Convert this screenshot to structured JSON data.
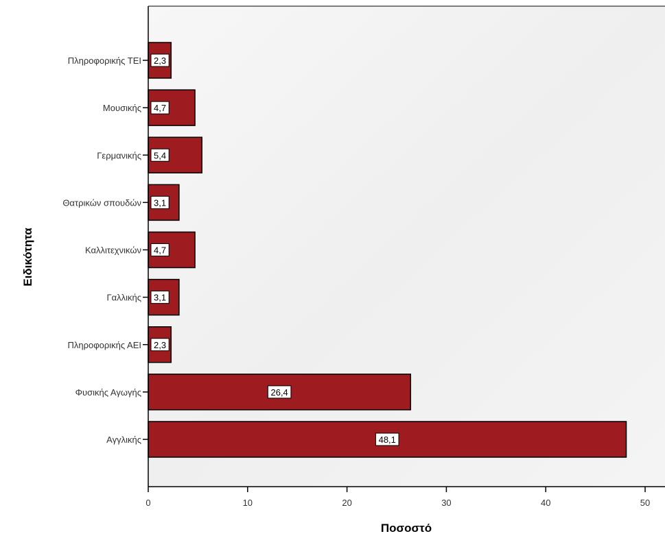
{
  "chart_data": {
    "type": "bar",
    "orientation": "horizontal",
    "xlabel": "Ποσοστό",
    "ylabel": "Ειδικότητα",
    "xlim": [
      0,
      52
    ],
    "xticks": [
      0,
      10,
      20,
      30,
      40,
      50
    ],
    "categories": [
      "Πληροφορικής ΤΕΙ",
      "Μουσικής",
      "Γερμανικής",
      "Θατρικών σπουδών",
      "Καλλιτεχνικών",
      "Γαλλικής",
      "Πληροφορικής ΑΕΙ",
      "Φυσικής Αγωγής",
      "Αγγλικής"
    ],
    "values": [
      2.3,
      4.7,
      5.4,
      3.1,
      4.7,
      3.1,
      2.3,
      26.4,
      48.1
    ],
    "data_labels": [
      "2,3",
      "4,7",
      "5,4",
      "3,1",
      "4,7",
      "3,1",
      "2,3",
      "26,4",
      "48,1"
    ],
    "tick_labels": [
      "0",
      "10",
      "20",
      "30",
      "40",
      "50"
    ],
    "bar_color": "#9e1b20",
    "plot_background": "#f2f2f2",
    "grid": false,
    "legend": "none"
  }
}
